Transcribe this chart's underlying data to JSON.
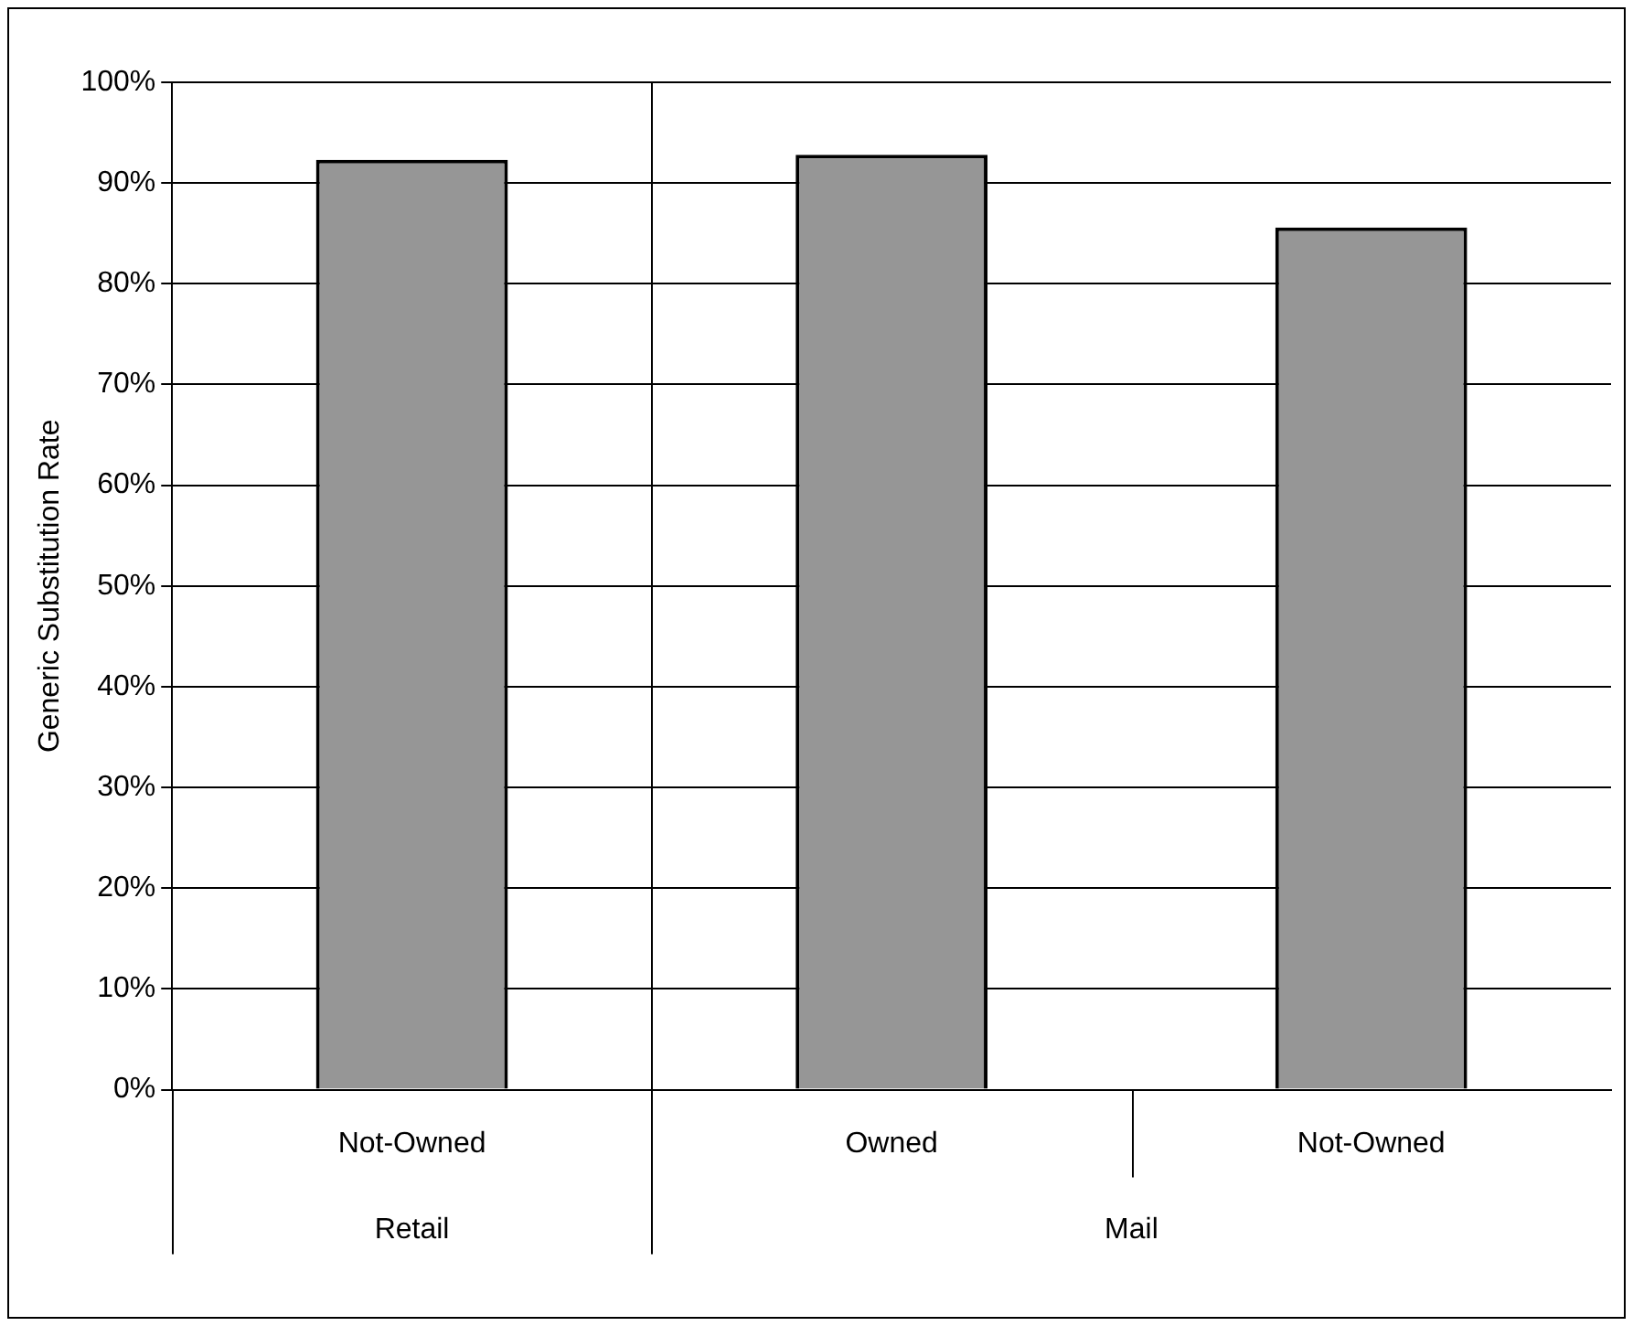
{
  "chart_data": {
    "type": "bar",
    "ylabel": "Generic Substitution Rate",
    "categories": [
      "Not-Owned",
      "Owned",
      "Not-Owned"
    ],
    "values": [
      92.3,
      92.8,
      85.6
    ],
    "color": "#969696",
    "ylim": [
      0,
      100
    ],
    "yticks": [
      {
        "value": 0,
        "label": "0%"
      },
      {
        "value": 10,
        "label": "10%"
      },
      {
        "value": 20,
        "label": "20%"
      },
      {
        "value": 30,
        "label": "30%"
      },
      {
        "value": 40,
        "label": "40%"
      },
      {
        "value": 50,
        "label": "50%"
      },
      {
        "value": 60,
        "label": "60%"
      },
      {
        "value": 70,
        "label": "70%"
      },
      {
        "value": 80,
        "label": "80%"
      },
      {
        "value": 90,
        "label": "90%"
      },
      {
        "value": 100,
        "label": "100%"
      }
    ],
    "grid": "y",
    "legend": false,
    "annotations": [
      "Retail",
      "Mail"
    ]
  }
}
